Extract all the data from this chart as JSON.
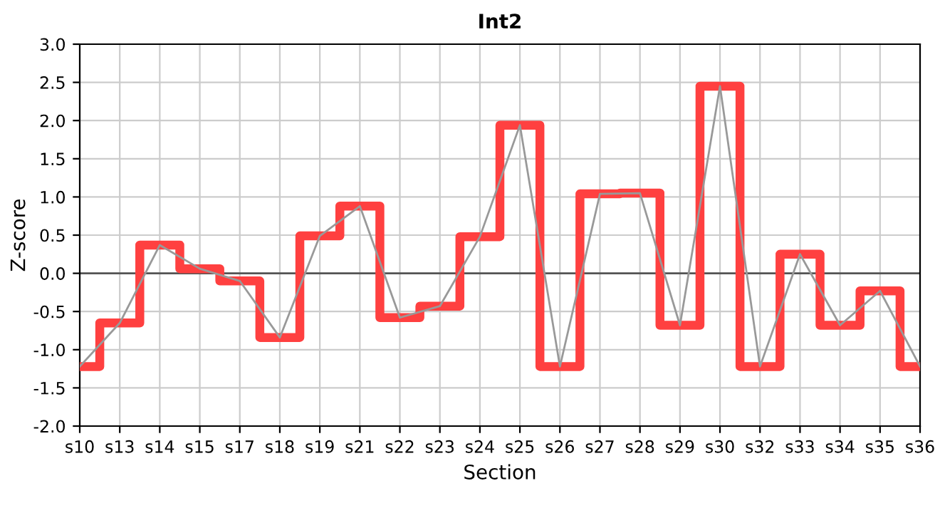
{
  "chart_data": {
    "type": "step",
    "title": "Int2",
    "xlabel": "Section",
    "ylabel": "Z-score",
    "categories": [
      "s10",
      "s13",
      "s14",
      "s15",
      "s17",
      "s18",
      "s19",
      "s21",
      "s22",
      "s23",
      "s24",
      "s25",
      "s26",
      "s27",
      "s28",
      "s29",
      "s30",
      "s32",
      "s33",
      "s34",
      "s35",
      "s36"
    ],
    "series": [
      {
        "color": "#ff4040",
        "values": [
          -1.22,
          -0.65,
          0.37,
          0.06,
          -0.1,
          -0.84,
          0.49,
          0.88,
          -0.58,
          -0.43,
          0.48,
          1.94,
          -1.22,
          1.04,
          1.05,
          -0.68,
          2.45,
          -1.22,
          0.25,
          -0.68,
          -0.23,
          -1.22
        ]
      },
      {
        "type": "line",
        "color": "#999999",
        "values": [
          -1.22,
          -0.65,
          0.37,
          0.06,
          -0.1,
          -0.84,
          0.49,
          0.88,
          -0.58,
          -0.43,
          0.48,
          1.94,
          -1.22,
          1.04,
          1.05,
          -0.68,
          2.45,
          -1.22,
          0.25,
          -0.68,
          -0.23,
          -1.22
        ]
      }
    ],
    "ylim": [
      -2.0,
      3.0
    ],
    "yticks": [
      {
        "value": -2.0,
        "label": "-2.0"
      },
      {
        "value": -1.5,
        "label": "-1.5"
      },
      {
        "value": -1.0,
        "label": "-1.0"
      },
      {
        "value": -0.5,
        "label": "-0.5"
      },
      {
        "value": 0.0,
        "label": "0.0"
      },
      {
        "value": 0.5,
        "label": "0.5"
      },
      {
        "value": 1.0,
        "label": "1.0"
      },
      {
        "value": 1.5,
        "label": "1.5"
      },
      {
        "value": 2.0,
        "label": "2.0"
      },
      {
        "value": 2.5,
        "label": "2.5"
      },
      {
        "value": 3.0,
        "label": "3.0"
      }
    ],
    "ref_lines": [
      {
        "axis": "y",
        "value": 0,
        "color": "#555555"
      }
    ],
    "grid": true,
    "legend": false,
    "marker": "none"
  }
}
